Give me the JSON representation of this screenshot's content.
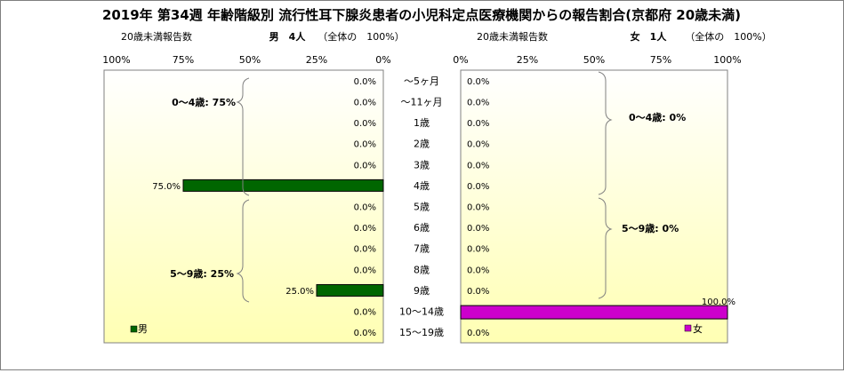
{
  "title": "2019年 第34週 年齢階級別 流行性耳下腺炎患者の小児科定点医療機関からの報告割合(京都府 20歳未満)",
  "left_header": {
    "caption": "20歳未満報告数",
    "sex_count": "男　4人",
    "total_note": "（全体の　100%）"
  },
  "right_header": {
    "caption": "20歳未満報告数",
    "sex_count": "女　1人",
    "total_note": "（全体の　100%）"
  },
  "left_axis_ticks": [
    "100%",
    "75%",
    "50%",
    "25%",
    "0%"
  ],
  "right_axis_ticks": [
    "0%",
    "25%",
    "50%",
    "75%",
    "100%"
  ],
  "left_brackets": [
    {
      "label": "0～4歳: 75%"
    },
    {
      "label": "5～9歳: 25%"
    }
  ],
  "right_brackets": [
    {
      "label": "0～4歳: 0%"
    },
    {
      "label": "5～9歳: 0%"
    }
  ],
  "legend": {
    "male": "男",
    "female": "女"
  },
  "colors": {
    "male": "#006600",
    "female": "#cc00cc",
    "plot_top": "#ffffff",
    "plot_bottom": "#ffffb3"
  },
  "chart_data": {
    "type": "bar",
    "orientation": "horizontal-population-pyramid",
    "categories": [
      "～5ヶ月",
      "～11ヶ月",
      "1歳",
      "2歳",
      "3歳",
      "4歳",
      "5歳",
      "6歳",
      "7歳",
      "8歳",
      "9歳",
      "10～14歳",
      "15～19歳"
    ],
    "series": [
      {
        "name": "男",
        "values": [
          0,
          0,
          0,
          0,
          0,
          75,
          0,
          0,
          0,
          0,
          25,
          0,
          0
        ],
        "labels": [
          "0.0%",
          "0.0%",
          "0.0%",
          "0.0%",
          "0.0%",
          "75.0%",
          "0.0%",
          "0.0%",
          "0.0%",
          "0.0%",
          "25.0%",
          "0.0%",
          "0.0%"
        ]
      },
      {
        "name": "女",
        "values": [
          0,
          0,
          0,
          0,
          0,
          0,
          0,
          0,
          0,
          0,
          0,
          100,
          0
        ],
        "labels": [
          "0.0%",
          "0.0%",
          "0.0%",
          "0.0%",
          "0.0%",
          "0.0%",
          "0.0%",
          "0.0%",
          "0.0%",
          "0.0%",
          "0.0%",
          "100.0%",
          "0.0%"
        ]
      }
    ],
    "xlim": [
      0,
      100
    ],
    "legend_position": "bottom"
  }
}
